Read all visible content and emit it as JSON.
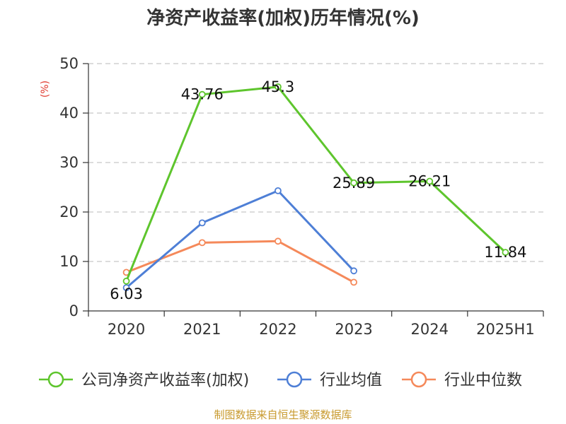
{
  "title": "净资产收益率(加权)历年情况(%)",
  "source": "制图数据来自恒生聚源数据库",
  "chart_data": {
    "type": "line",
    "title": "净资产收益率(加权)历年情况(%)",
    "ylabel": "(%)",
    "xlabel": "",
    "categories": [
      "2020",
      "2021",
      "2022",
      "2023",
      "2024",
      "2025H1"
    ],
    "ylim": [
      0,
      50
    ],
    "yticks": [
      0,
      10,
      20,
      30,
      40,
      50
    ],
    "grid": true,
    "legend_position": "bottom",
    "series": [
      {
        "name": "公司净资产收益率(加权)",
        "color": "#5ec52d",
        "values": [
          6.03,
          43.76,
          45.3,
          25.89,
          26.21,
          11.84
        ],
        "labels": [
          "6.03",
          "43.76",
          "45.3",
          "25.89",
          "26.21",
          "11.84"
        ]
      },
      {
        "name": "行业均值",
        "color": "#4e7fd6",
        "values": [
          4.7,
          17.8,
          24.3,
          8.1,
          null,
          null
        ]
      },
      {
        "name": "行业中位数",
        "color": "#f5895a",
        "values": [
          7.8,
          13.8,
          14.1,
          5.8,
          null,
          null
        ]
      }
    ]
  }
}
